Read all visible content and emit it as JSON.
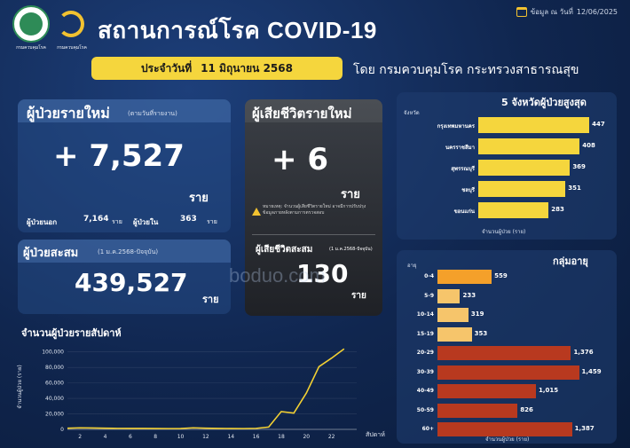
{
  "header": {
    "title": "สถานการณ์โรค COVID-19",
    "date_prefix": "ข้อมูล ณ วันที่",
    "date": "12/06/2025",
    "badge_prefix": "ประจำวันที่",
    "badge_date": "11 มิถุนายน 2568",
    "by": "โดย กรมควบคุมโรค กระทรวงสาธารณสุข",
    "logo1_caption": "กรมควบคุมโรค",
    "logo2_caption": "กรมควบคุมโรค"
  },
  "new_cases": {
    "label": "ผู้ป่วยรายใหม่",
    "sublabel": "(ตามวันที่รายงาน)",
    "value": "+ 7,527",
    "unit": "ราย",
    "outpatient_label": "ผู้ป่วยนอก",
    "outpatient_value": "7,164",
    "inpatient_label": "ผู้ป่วยใน",
    "inpatient_value": "363",
    "unit_small": "ราย"
  },
  "cumulative": {
    "label": "ผู้ป่วยสะสม",
    "sublabel": "(1 ม.ค.2568-ปัจจุบัน)",
    "value": "439,527",
    "unit": "ราย"
  },
  "deaths": {
    "label": "ผู้เสียชีวิตรายใหม่",
    "value": "+ 6",
    "unit": "ราย",
    "note": "หมายเหตุ: จำนวนผู้เสียชีวิตรายใหม่ อาจมีการปรับปรุงข้อมูลภายหลังตามการตรวจสอบ",
    "cum_label": "ผู้เสียชีวิตสะสม",
    "cum_sublabel": "(1 ม.ค.2568-ปัจจุบัน)",
    "cum_value": "130",
    "cum_unit": "ราย"
  },
  "watermark": "boduo.com",
  "colors": {
    "yellow": "#f5d63d",
    "orange": "#f4a02a",
    "light_orange": "#f6c56b",
    "red": "#b8391f",
    "line": "#f2d033"
  },
  "chart_data": [
    {
      "type": "bar",
      "orientation": "horizontal",
      "title": "5 จังหวัดผู้ป่วยสูงสุด",
      "category_header": "จังหวัด",
      "xlabel": "จำนวนผู้ป่วย (ราย)",
      "categories": [
        "กรุงเทพมหานคร",
        "นครราชสีมา",
        "สุพรรณบุรี",
        "ชลบุรี",
        "ขอนแก่น"
      ],
      "values": [
        447,
        408,
        369,
        351,
        283
      ],
      "value_labels": [
        "447",
        "408",
        "369",
        "351",
        "283"
      ],
      "xlim": [
        0,
        450
      ]
    },
    {
      "type": "bar",
      "orientation": "horizontal",
      "title": "กลุ่มอายุ",
      "category_header": "อายุ",
      "xlabel": "จำนวนผู้ป่วย (ราย)",
      "categories": [
        "0-4",
        "5-9",
        "10-14",
        "15-19",
        "20-29",
        "30-39",
        "40-49",
        "50-59",
        "60+"
      ],
      "values": [
        559,
        233,
        319,
        353,
        1376,
        1459,
        1015,
        826,
        1387
      ],
      "value_labels": [
        "559",
        "233",
        "319",
        "353",
        "1,376",
        "1,459",
        "1,015",
        "826",
        "1,387"
      ],
      "xlim": [
        0,
        1500
      ]
    },
    {
      "type": "line",
      "title": "จำนวนผู้ป่วยรายสัปดาห์",
      "xlabel": "สัปดาห์",
      "ylabel": "จำนวนผู้ป่วย (ราย)",
      "x": [
        1,
        2,
        3,
        4,
        5,
        6,
        7,
        8,
        9,
        10,
        11,
        12,
        13,
        14,
        15,
        16,
        17,
        18,
        19,
        20,
        21,
        22,
        23
      ],
      "values": [
        1500,
        2000,
        1800,
        1500,
        1300,
        1200,
        1200,
        1100,
        1000,
        1100,
        2000,
        1500,
        1200,
        1100,
        1000,
        1300,
        3000,
        23000,
        21000,
        47000,
        81000,
        92000,
        104000
      ],
      "xticks": [
        2,
        4,
        6,
        8,
        10,
        12,
        14,
        16,
        18,
        20,
        22
      ],
      "yticks": [
        0,
        20000,
        40000,
        60000,
        80000,
        100000
      ],
      "ytick_labels": [
        "0",
        "20,000",
        "40,000",
        "60,000",
        "80,000",
        "100,000"
      ],
      "xlim": [
        1,
        24
      ],
      "ylim": [
        0,
        110000
      ]
    }
  ]
}
